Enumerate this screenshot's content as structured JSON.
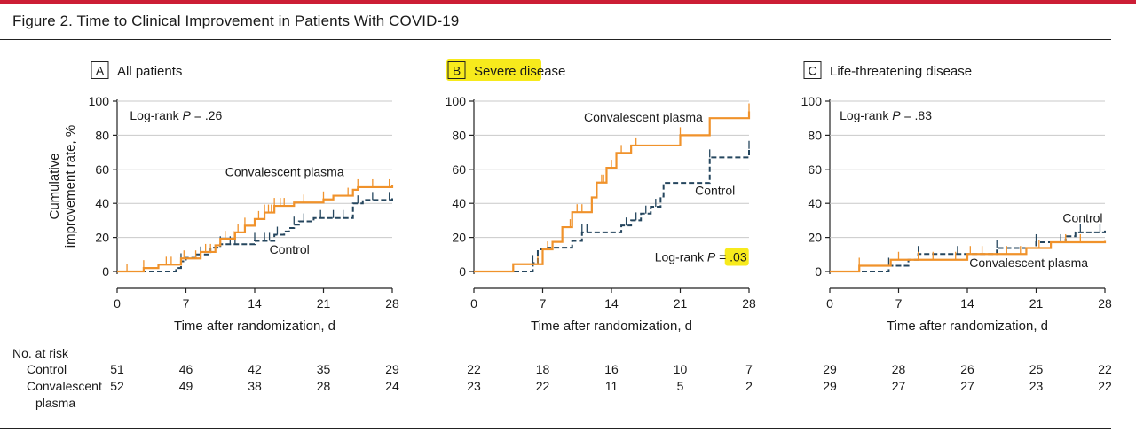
{
  "figure_title": "Figure 2. Time to Clinical Improvement in Patients With COVID-19",
  "y_axis_label_line1": "Cumulative",
  "y_axis_label_line2": "improvement rate, %",
  "risk_table": {
    "title": "No. at risk",
    "row_control_label": "Control",
    "row_plasma_label_line1": "Convalescent",
    "row_plasma_label_line2": "plasma"
  },
  "colors": {
    "plasma": "#f0922b",
    "control": "#25465e",
    "axis": "#222222",
    "highlight": "#f7ea1c",
    "brand_red": "#cc1d35"
  },
  "chart_data": [
    {
      "type": "line",
      "panel_letter": "A",
      "title": "All patients",
      "highlighted": false,
      "xlabel": "Time after randomization, d",
      "ylabel": "Cumulative improvement rate, %",
      "xlim": [
        0,
        28
      ],
      "ylim": [
        0,
        100
      ],
      "xticks": [
        0,
        7,
        14,
        21,
        28
      ],
      "yticks": [
        0,
        20,
        40,
        60,
        80,
        100
      ],
      "logrank_prefix": "Log-rank ",
      "logrank_p_label": "P",
      "logrank_eq": " = ",
      "logrank_value": ".26",
      "series": [
        {
          "name": "Convalescent plasma",
          "label": "Convalescent plasma",
          "color": "#f0922b",
          "dash": false,
          "steps": [
            [
              0,
              0
            ],
            [
              2.7,
              2
            ],
            [
              4.2,
              4
            ],
            [
              6.5,
              7.7
            ],
            [
              8.5,
              11.5
            ],
            [
              10,
              15.4
            ],
            [
              10.5,
              19.2
            ],
            [
              12,
              23
            ],
            [
              13,
              26.9
            ],
            [
              14,
              30.8
            ],
            [
              15,
              34.6
            ],
            [
              16,
              38.5
            ],
            [
              18,
              40.5
            ],
            [
              21,
              42.3
            ],
            [
              22,
              44.5
            ],
            [
              24,
              48
            ],
            [
              24.5,
              49.5
            ],
            [
              28,
              51
            ]
          ],
          "censor": [
            1,
            2.7,
            5,
            5.5,
            6.8,
            8,
            9,
            9.5,
            11,
            11.8,
            12.3,
            13,
            14.4,
            15,
            15.4,
            15.7,
            16,
            16.6,
            17,
            19,
            21,
            23.5,
            24.5,
            26,
            27.7
          ]
        },
        {
          "name": "Control",
          "label": "Control",
          "color": "#25465e",
          "dash": true,
          "steps": [
            [
              0,
              0
            ],
            [
              6,
              2
            ],
            [
              6.5,
              6
            ],
            [
              7,
              8
            ],
            [
              8,
              10
            ],
            [
              9.5,
              14
            ],
            [
              10.5,
              16
            ],
            [
              14,
              18
            ],
            [
              16,
              21.6
            ],
            [
              17,
              23.5
            ],
            [
              17.5,
              25.5
            ],
            [
              18,
              27.5
            ],
            [
              18.5,
              29.4
            ],
            [
              20,
              31.4
            ],
            [
              24,
              40
            ],
            [
              25,
              42
            ],
            [
              28,
              43
            ]
          ],
          "censor": [
            6.5,
            8.5,
            10.5,
            11.5,
            12,
            14,
            15,
            15.5,
            16.3,
            18,
            19,
            20.7,
            22,
            23,
            24.5,
            26,
            27.7
          ]
        }
      ],
      "annotations": [
        {
          "text": "Convalescent plasma",
          "x": 11,
          "y": 56,
          "anchor": "start"
        },
        {
          "text": "Control",
          "x": 15.5,
          "y": 10.5,
          "anchor": "start"
        }
      ],
      "logrank_pos": {
        "x": 1.3,
        "y": 89
      },
      "at_risk": {
        "times": [
          0,
          7,
          14,
          21,
          28
        ],
        "control": [
          51,
          46,
          42,
          35,
          29
        ],
        "plasma": [
          52,
          49,
          38,
          28,
          24
        ]
      }
    },
    {
      "type": "line",
      "panel_letter": "B",
      "title": "Severe disease",
      "highlighted": true,
      "xlabel": "Time after randomization, d",
      "ylabel": "Cumulative improvement rate, %",
      "xlim": [
        0,
        28
      ],
      "ylim": [
        0,
        100
      ],
      "xticks": [
        0,
        7,
        14,
        21,
        28
      ],
      "yticks": [
        0,
        20,
        40,
        60,
        80,
        100
      ],
      "logrank_prefix": "Log-rank ",
      "logrank_p_label": "P",
      "logrank_eq": " = ",
      "logrank_value": ".03",
      "series": [
        {
          "name": "Convalescent plasma",
          "label": "Convalescent plasma",
          "color": "#f0922b",
          "dash": false,
          "steps": [
            [
              0,
              0
            ],
            [
              4,
              4.3
            ],
            [
              7,
              13
            ],
            [
              8,
              17.4
            ],
            [
              9,
              26
            ],
            [
              10,
              34.8
            ],
            [
              12,
              43.5
            ],
            [
              12.5,
              52.2
            ],
            [
              13.5,
              60.9
            ],
            [
              14.5,
              69.6
            ],
            [
              16,
              74
            ],
            [
              21,
              80
            ],
            [
              24,
              90
            ],
            [
              28,
              94
            ]
          ],
          "censor": [
            6.5,
            7.5,
            9.8,
            10.5,
            11,
            13,
            13.2,
            14,
            15,
            16.5,
            21,
            28
          ]
        },
        {
          "name": "Control",
          "label": "Control",
          "color": "#25465e",
          "dash": true,
          "steps": [
            [
              0,
              0
            ],
            [
              6,
              5
            ],
            [
              6.5,
              13
            ],
            [
              7.5,
              14
            ],
            [
              10,
              18
            ],
            [
              11,
              23
            ],
            [
              15,
              27
            ],
            [
              16,
              30
            ],
            [
              17,
              34
            ],
            [
              18,
              38
            ],
            [
              19,
              44
            ],
            [
              19.3,
              52
            ],
            [
              24,
              67
            ],
            [
              28,
              72
            ]
          ],
          "censor": [
            6,
            11,
            11.5,
            15.5,
            16.5,
            17.5,
            18.5,
            24,
            28
          ]
        }
      ],
      "annotations": [
        {
          "text": "Convalescent plasma",
          "x": 11.2,
          "y": 88,
          "anchor": "start"
        },
        {
          "text": "Control",
          "x": 22.5,
          "y": 45,
          "anchor": "start"
        }
      ],
      "logrank_pos": {
        "x": 18.4,
        "y": 6
      },
      "at_risk": {
        "times": [
          0,
          7,
          14,
          21,
          28
        ],
        "control": [
          22,
          18,
          16,
          10,
          7
        ],
        "plasma": [
          23,
          22,
          11,
          5,
          2
        ]
      }
    },
    {
      "type": "line",
      "panel_letter": "C",
      "title": "Life-threatening disease",
      "highlighted": false,
      "xlabel": "Time after randomization, d",
      "ylabel": "Cumulative improvement rate, %",
      "xlim": [
        0,
        28
      ],
      "ylim": [
        0,
        100
      ],
      "xticks": [
        0,
        7,
        14,
        21,
        28
      ],
      "yticks": [
        0,
        20,
        40,
        60,
        80,
        100
      ],
      "logrank_prefix": "Log-rank ",
      "logrank_p_label": "P",
      "logrank_eq": " = ",
      "logrank_value": ".83",
      "series": [
        {
          "name": "Convalescent plasma",
          "label": "Convalescent plasma",
          "color": "#f0922b",
          "dash": false,
          "steps": [
            [
              0,
              0
            ],
            [
              3,
              3.4
            ],
            [
              6.2,
              6.9
            ],
            [
              14,
              10.3
            ],
            [
              20,
              13.8
            ],
            [
              22.5,
              17.2
            ],
            [
              28,
              18
            ]
          ],
          "censor": [
            3,
            7,
            9,
            10.5,
            12.8,
            14.3,
            15.5,
            18,
            19.4,
            21.3,
            24,
            25.5
          ]
        },
        {
          "name": "Control",
          "label": "Control",
          "color": "#25465e",
          "dash": true,
          "steps": [
            [
              0,
              0
            ],
            [
              6,
              3.4
            ],
            [
              8,
              6.9
            ],
            [
              9,
              10.3
            ],
            [
              17,
              13.8
            ],
            [
              21,
              17.2
            ],
            [
              24,
              20.7
            ],
            [
              25,
              23
            ],
            [
              28,
              24
            ]
          ],
          "censor": [
            6,
            9,
            13,
            17,
            21,
            23.5,
            25.5,
            27.5
          ]
        }
      ],
      "annotations": [
        {
          "text": "Convalescent plasma",
          "x": 14.2,
          "y": 2.5,
          "anchor": "start"
        },
        {
          "text": "Control",
          "x": 23.7,
          "y": 29,
          "anchor": "start"
        }
      ],
      "logrank_pos": {
        "x": 1,
        "y": 89
      },
      "at_risk": {
        "times": [
          0,
          7,
          14,
          21,
          28
        ],
        "control": [
          29,
          28,
          26,
          25,
          22
        ],
        "plasma": [
          29,
          27,
          27,
          23,
          22
        ]
      }
    }
  ]
}
